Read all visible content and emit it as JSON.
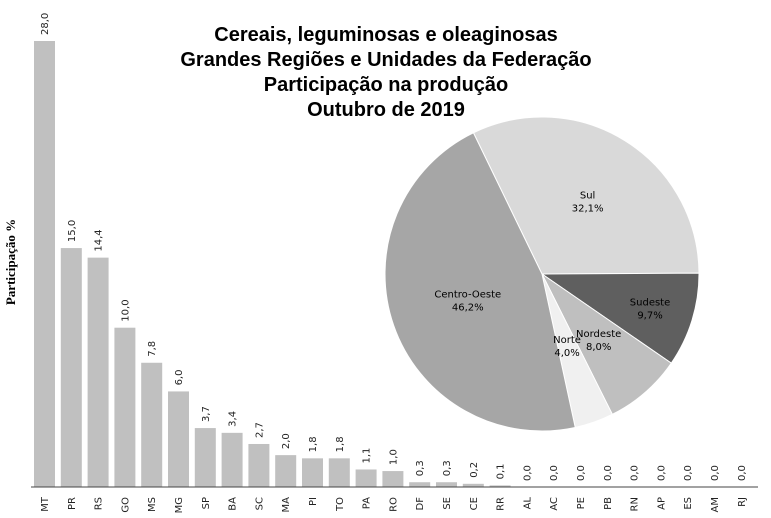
{
  "chart_data": [
    {
      "type": "bar",
      "ylabel": "Participação %",
      "categories": [
        "MT",
        "PR",
        "RS",
        "GO",
        "MS",
        "MG",
        "SP",
        "BA",
        "SC",
        "MA",
        "PI",
        "TO",
        "PA",
        "RO",
        "DF",
        "SE",
        "CE",
        "RR",
        "AL",
        "AC",
        "PE",
        "PB",
        "RN",
        "AP",
        "ES",
        "AM",
        "RJ"
      ],
      "values": [
        28.0,
        15.0,
        14.4,
        10.0,
        7.8,
        6.0,
        3.7,
        3.4,
        2.7,
        2.0,
        1.8,
        1.8,
        1.1,
        1.0,
        0.3,
        0.3,
        0.2,
        0.1,
        0.0,
        0.0,
        0.0,
        0.0,
        0.0,
        0.0,
        0.0,
        0.0,
        0.0
      ],
      "value_labels": [
        "28,0",
        "15,0",
        "14,4",
        "10,0",
        "7,8",
        "6,0",
        "3,7",
        "3,4",
        "2,7",
        "2,0",
        "1,8",
        "1,8",
        "1,1",
        "1,0",
        "0,3",
        "0,3",
        "0,2",
        "0,1",
        "0,0",
        "0,0",
        "0,0",
        "0,0",
        "0,0",
        "0,0",
        "0,0",
        "0,0",
        "0,0"
      ],
      "ylim": [
        0,
        28.0
      ],
      "grid": false,
      "bar_color": "#c0c0c0"
    },
    {
      "type": "pie",
      "slices": [
        {
          "label": "Sul",
          "value": 32.1,
          "value_label": "32,1%",
          "color": "#d9d9d9"
        },
        {
          "label": "Sudeste",
          "value": 9.7,
          "value_label": "9,7%",
          "color": "#5f5f5f"
        },
        {
          "label": "Nordeste",
          "value": 8.0,
          "value_label": "8,0%",
          "color": "#bfbfbf"
        },
        {
          "label": "Norte",
          "value": 4.0,
          "value_label": "4,0%",
          "color": "#f0f0f0"
        },
        {
          "label": "Centro-Oeste",
          "value": 46.2,
          "value_label": "46,2%",
          "color": "#a6a6a6"
        }
      ]
    }
  ],
  "title_lines": [
    "Cereais, leguminosas e oleaginosas",
    "Grandes Regiões e Unidades da Federação",
    "Participação na produção",
    "Outubro de 2019"
  ]
}
